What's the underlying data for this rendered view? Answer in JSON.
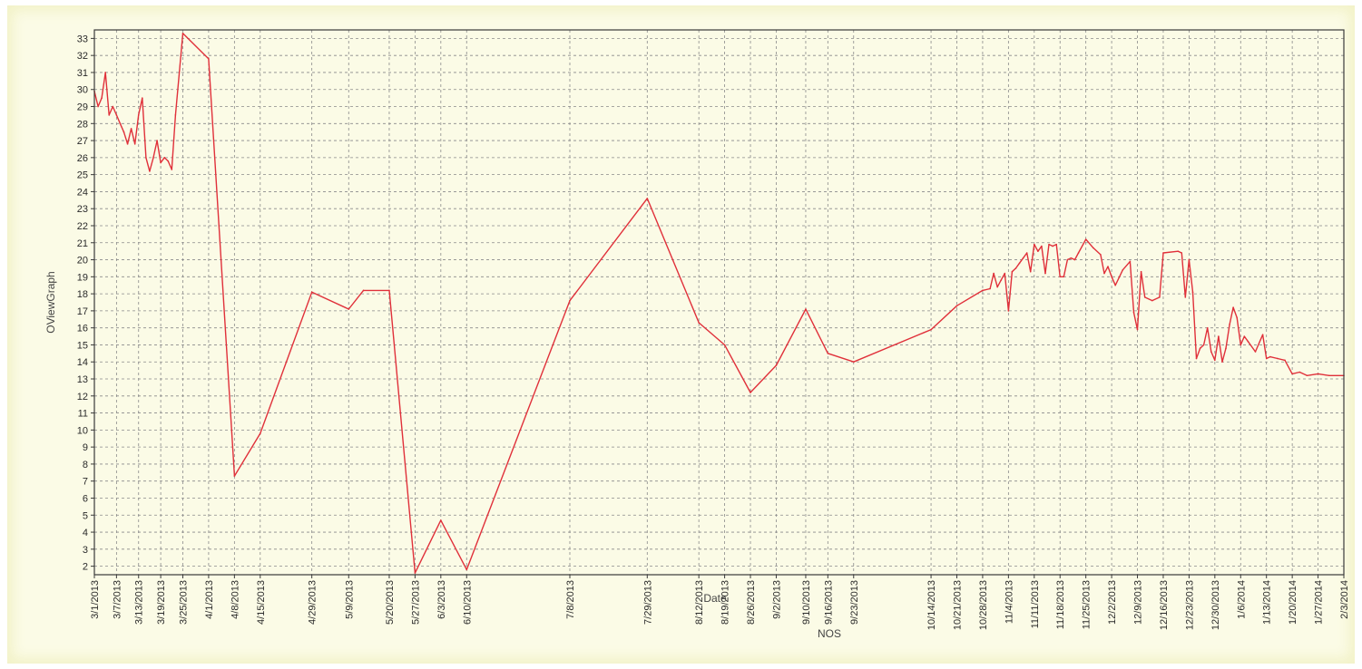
{
  "chart_data": {
    "type": "line",
    "title": "",
    "xlabel": "Date",
    "ylabel": "OViewGraph",
    "footer_label": "NOS",
    "ylim": [
      1.5,
      33.5
    ],
    "xlim": [
      "2013-03-01",
      "2014-02-03"
    ],
    "yticks": [
      2,
      3,
      4,
      5,
      6,
      7,
      8,
      9,
      10,
      11,
      12,
      13,
      14,
      15,
      16,
      17,
      18,
      19,
      20,
      21,
      22,
      23,
      24,
      25,
      26,
      27,
      28,
      29,
      30,
      31,
      32,
      33
    ],
    "x_tick_labels": [
      {
        "date": "2013-03-01",
        "label": "3/1/2013"
      },
      {
        "date": "2013-03-07",
        "label": "3/7/2013"
      },
      {
        "date": "2013-03-13",
        "label": "3/13/2013"
      },
      {
        "date": "2013-03-19",
        "label": "3/19/2013"
      },
      {
        "date": "2013-03-25",
        "label": "3/25/2013"
      },
      {
        "date": "2013-04-01",
        "label": "4/1/2013"
      },
      {
        "date": "2013-04-08",
        "label": "4/8/2013"
      },
      {
        "date": "2013-04-15",
        "label": "4/15/2013"
      },
      {
        "date": "2013-04-29",
        "label": "4/29/2013"
      },
      {
        "date": "2013-05-09",
        "label": "5/9/2013"
      },
      {
        "date": "2013-05-20",
        "label": "5/20/2013"
      },
      {
        "date": "2013-05-27",
        "label": "5/27/2013"
      },
      {
        "date": "2013-06-03",
        "label": "6/3/2013"
      },
      {
        "date": "2013-06-10",
        "label": "6/10/2013"
      },
      {
        "date": "2013-07-08",
        "label": "7/8/2013"
      },
      {
        "date": "2013-07-29",
        "label": "7/29/2013"
      },
      {
        "date": "2013-08-12",
        "label": "8/12/2013"
      },
      {
        "date": "2013-08-19",
        "label": "8/19/2013"
      },
      {
        "date": "2013-08-26",
        "label": "8/26/2013"
      },
      {
        "date": "2013-09-02",
        "label": "9/2/2013"
      },
      {
        "date": "2013-09-10",
        "label": "9/10/2013"
      },
      {
        "date": "2013-09-16",
        "label": "9/16/2013"
      },
      {
        "date": "2013-09-23",
        "label": "9/23/2013"
      },
      {
        "date": "2013-10-14",
        "label": "10/14/2013"
      },
      {
        "date": "2013-10-21",
        "label": "10/21/2013"
      },
      {
        "date": "2013-10-28",
        "label": "10/28/2013"
      },
      {
        "date": "2013-11-04",
        "label": "11/4/2013"
      },
      {
        "date": "2013-11-11",
        "label": "11/11/2013"
      },
      {
        "date": "2013-11-18",
        "label": "11/18/2013"
      },
      {
        "date": "2013-11-25",
        "label": "11/25/2013"
      },
      {
        "date": "2013-12-02",
        "label": "12/2/2013"
      },
      {
        "date": "2013-12-09",
        "label": "12/9/2013"
      },
      {
        "date": "2013-12-16",
        "label": "12/16/2013"
      },
      {
        "date": "2013-12-23",
        "label": "12/23/2013"
      },
      {
        "date": "2013-12-30",
        "label": "12/30/2013"
      },
      {
        "date": "2014-01-06",
        "label": "1/6/2014"
      },
      {
        "date": "2014-01-13",
        "label": "1/13/2014"
      },
      {
        "date": "2014-01-20",
        "label": "1/20/2014"
      },
      {
        "date": "2014-01-27",
        "label": "1/27/2014"
      },
      {
        "date": "2014-02-03",
        "label": "2/3/2014"
      }
    ],
    "grid": true,
    "colors": {
      "line": "#e0303a",
      "grid": "#8a8a8a",
      "plot_bg": "#fbfbe6",
      "axis": "#3a3a3a"
    },
    "series": [
      {
        "points": [
          [
            "2013-03-01",
            29.9
          ],
          [
            "2013-03-02",
            29.0
          ],
          [
            "2013-03-03",
            29.5
          ],
          [
            "2013-03-04",
            31.0
          ],
          [
            "2013-03-05",
            28.5
          ],
          [
            "2013-03-06",
            29.0
          ],
          [
            "2013-03-07",
            28.5
          ],
          [
            "2013-03-08",
            28.0
          ],
          [
            "2013-03-09",
            27.5
          ],
          [
            "2013-03-10",
            26.8
          ],
          [
            "2013-03-11",
            27.7
          ],
          [
            "2013-03-12",
            26.8
          ],
          [
            "2013-03-13",
            28.5
          ],
          [
            "2013-03-14",
            29.5
          ],
          [
            "2013-03-15",
            26.0
          ],
          [
            "2013-03-16",
            25.2
          ],
          [
            "2013-03-17",
            26.0
          ],
          [
            "2013-03-18",
            27.0
          ],
          [
            "2013-03-19",
            25.7
          ],
          [
            "2013-03-20",
            26.0
          ],
          [
            "2013-03-21",
            25.8
          ],
          [
            "2013-03-22",
            25.3
          ],
          [
            "2013-03-23",
            28.5
          ],
          [
            "2013-03-25",
            33.3
          ],
          [
            "2013-04-01",
            31.8
          ],
          [
            "2013-04-08",
            7.3
          ],
          [
            "2013-04-15",
            9.8
          ],
          [
            "2013-04-29",
            18.1
          ],
          [
            "2013-05-09",
            17.1
          ],
          [
            "2013-05-13",
            18.2
          ],
          [
            "2013-05-20",
            18.2
          ],
          [
            "2013-05-27",
            1.6
          ],
          [
            "2013-06-03",
            4.7
          ],
          [
            "2013-06-10",
            1.8
          ],
          [
            "2013-07-08",
            17.6
          ],
          [
            "2013-07-29",
            23.6
          ],
          [
            "2013-08-12",
            16.3
          ],
          [
            "2013-08-19",
            15.0
          ],
          [
            "2013-08-26",
            12.2
          ],
          [
            "2013-09-02",
            13.8
          ],
          [
            "2013-09-10",
            17.1
          ],
          [
            "2013-09-16",
            14.5
          ],
          [
            "2013-09-23",
            14.0
          ],
          [
            "2013-10-14",
            15.9
          ],
          [
            "2013-10-21",
            17.3
          ],
          [
            "2013-10-28",
            18.2
          ],
          [
            "2013-10-30",
            18.3
          ],
          [
            "2013-10-31",
            19.2
          ],
          [
            "2013-11-01",
            18.4
          ],
          [
            "2013-11-02",
            18.8
          ],
          [
            "2013-11-03",
            19.2
          ],
          [
            "2013-11-04",
            17.0
          ],
          [
            "2013-11-05",
            19.3
          ],
          [
            "2013-11-06",
            19.5
          ],
          [
            "2013-11-07",
            19.8
          ],
          [
            "2013-11-08",
            20.1
          ],
          [
            "2013-11-09",
            20.4
          ],
          [
            "2013-11-10",
            19.3
          ],
          [
            "2013-11-11",
            20.9
          ],
          [
            "2013-11-12",
            20.5
          ],
          [
            "2013-11-13",
            20.8
          ],
          [
            "2013-11-14",
            19.2
          ],
          [
            "2013-11-15",
            20.9
          ],
          [
            "2013-11-16",
            20.8
          ],
          [
            "2013-11-17",
            20.9
          ],
          [
            "2013-11-18",
            19.0
          ],
          [
            "2013-11-19",
            19.0
          ],
          [
            "2013-11-20",
            20.0
          ],
          [
            "2013-11-21",
            20.1
          ],
          [
            "2013-11-22",
            20.0
          ],
          [
            "2013-11-23",
            20.4
          ],
          [
            "2013-11-25",
            21.2
          ],
          [
            "2013-11-27",
            20.7
          ],
          [
            "2013-11-29",
            20.3
          ],
          [
            "2013-11-30",
            19.2
          ],
          [
            "2013-12-01",
            19.6
          ],
          [
            "2013-12-02",
            19.0
          ],
          [
            "2013-12-03",
            18.5
          ],
          [
            "2013-12-05",
            19.4
          ],
          [
            "2013-12-07",
            19.9
          ],
          [
            "2013-12-08",
            16.9
          ],
          [
            "2013-12-09",
            15.9
          ],
          [
            "2013-12-10",
            19.3
          ],
          [
            "2013-12-11",
            17.8
          ],
          [
            "2013-12-13",
            17.6
          ],
          [
            "2013-12-15",
            17.8
          ],
          [
            "2013-12-16",
            20.4
          ],
          [
            "2013-12-20",
            20.5
          ],
          [
            "2013-12-21",
            20.4
          ],
          [
            "2013-12-22",
            17.8
          ],
          [
            "2013-12-23",
            20.0
          ],
          [
            "2013-12-24",
            18.1
          ],
          [
            "2013-12-25",
            14.2
          ],
          [
            "2013-12-26",
            14.8
          ],
          [
            "2013-12-27",
            15.0
          ],
          [
            "2013-12-28",
            16.0
          ],
          [
            "2013-12-29",
            14.6
          ],
          [
            "2013-12-30",
            14.1
          ],
          [
            "2013-12-31",
            15.5
          ],
          [
            "2014-01-01",
            14.0
          ],
          [
            "2014-01-02",
            14.8
          ],
          [
            "2014-01-03",
            16.2
          ],
          [
            "2014-01-04",
            17.2
          ],
          [
            "2014-01-05",
            16.6
          ],
          [
            "2014-01-06",
            15.0
          ],
          [
            "2014-01-07",
            15.5
          ],
          [
            "2014-01-08",
            15.2
          ],
          [
            "2014-01-10",
            14.6
          ],
          [
            "2014-01-12",
            15.6
          ],
          [
            "2014-01-13",
            14.2
          ],
          [
            "2014-01-14",
            14.3
          ],
          [
            "2014-01-16",
            14.2
          ],
          [
            "2014-01-18",
            14.1
          ],
          [
            "2014-01-20",
            13.3
          ],
          [
            "2014-01-22",
            13.4
          ],
          [
            "2014-01-24",
            13.2
          ],
          [
            "2014-01-27",
            13.3
          ],
          [
            "2014-01-30",
            13.2
          ],
          [
            "2014-02-03",
            13.2
          ]
        ]
      }
    ]
  }
}
